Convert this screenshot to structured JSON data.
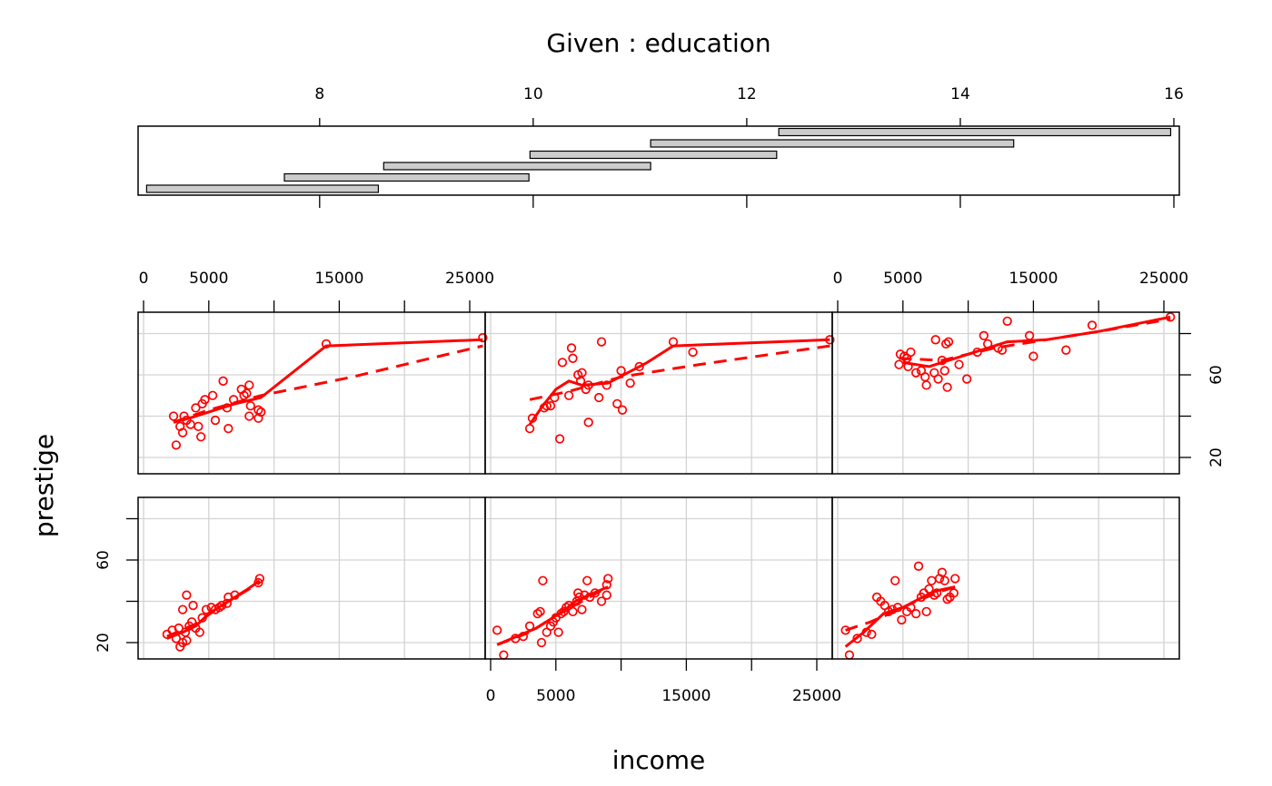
{
  "chart_data": {
    "type": "scatter",
    "title": "Given : education",
    "xlabel": "income",
    "ylabel": "prestige",
    "given": {
      "name": "education",
      "ticks": [
        8,
        10,
        12,
        14,
        16
      ],
      "tick_labels": [
        "8",
        "10",
        "12",
        "14",
        "16"
      ],
      "range": [
        6.3,
        16.0
      ],
      "intervals": [
        [
          6.38,
          8.55
        ],
        [
          7.67,
          9.96
        ],
        [
          8.6,
          11.1
        ],
        [
          9.97,
          12.28
        ],
        [
          11.1,
          14.5
        ],
        [
          12.3,
          15.97
        ]
      ]
    },
    "xlim": [
      -200,
      27000
    ],
    "x_ticks": [
      0,
      5000,
      10000,
      15000,
      20000,
      25000
    ],
    "x_tick_labels": [
      "0",
      "5000",
      "",
      "15000",
      "",
      "25000"
    ],
    "ylim": [
      11,
      91
    ],
    "y_ticks": [
      20,
      40,
      60,
      80
    ],
    "y_tick_labels": [
      "20",
      "",
      "60",
      ""
    ],
    "grid": true,
    "panels": [
      {
        "points": [
          [
            1800,
            24
          ],
          [
            2200,
            26
          ],
          [
            2500,
            22
          ],
          [
            2700,
            27
          ],
          [
            2800,
            18
          ],
          [
            3000,
            20
          ],
          [
            3200,
            25
          ],
          [
            3000,
            36
          ],
          [
            3300,
            21
          ],
          [
            3500,
            28
          ],
          [
            3300,
            43
          ],
          [
            3700,
            30
          ],
          [
            3800,
            38
          ],
          [
            4000,
            27
          ],
          [
            4300,
            25
          ],
          [
            4500,
            32
          ],
          [
            4800,
            36
          ],
          [
            5200,
            37
          ],
          [
            5500,
            36
          ],
          [
            5800,
            37
          ],
          [
            6000,
            38
          ],
          [
            6400,
            39
          ],
          [
            6500,
            42
          ],
          [
            7000,
            43
          ],
          [
            8900,
            51
          ],
          [
            8800,
            49
          ]
        ],
        "fit_solid": [
          [
            1800,
            22
          ],
          [
            3000,
            25
          ],
          [
            4000,
            28
          ],
          [
            5000,
            34
          ],
          [
            6000,
            38
          ],
          [
            7000,
            42
          ],
          [
            8000,
            46
          ],
          [
            8900,
            50
          ]
        ],
        "fit_dashed": [
          [
            1800,
            23
          ],
          [
            4000,
            29
          ],
          [
            6000,
            38
          ],
          [
            8900,
            49
          ]
        ]
      },
      {
        "points": [
          [
            500,
            26
          ],
          [
            1000,
            14
          ],
          [
            1900,
            22
          ],
          [
            2500,
            23
          ],
          [
            3000,
            28
          ],
          [
            3600,
            34
          ],
          [
            3800,
            35
          ],
          [
            3900,
            20
          ],
          [
            4000,
            50
          ],
          [
            4300,
            25
          ],
          [
            4600,
            28
          ],
          [
            4800,
            30
          ],
          [
            5000,
            32
          ],
          [
            5200,
            25
          ],
          [
            5400,
            34
          ],
          [
            5600,
            35
          ],
          [
            5800,
            37
          ],
          [
            6000,
            38
          ],
          [
            6300,
            35
          ],
          [
            6600,
            40
          ],
          [
            6700,
            44
          ],
          [
            6800,
            42
          ],
          [
            7000,
            36
          ],
          [
            7200,
            43
          ],
          [
            7400,
            50
          ],
          [
            7600,
            42
          ],
          [
            8000,
            44
          ],
          [
            8500,
            40
          ],
          [
            8900,
            43
          ],
          [
            8900,
            48
          ],
          [
            9000,
            51
          ]
        ],
        "fit_solid": [
          [
            500,
            19
          ],
          [
            2000,
            23
          ],
          [
            3500,
            27
          ],
          [
            4500,
            31
          ],
          [
            5500,
            35
          ],
          [
            6500,
            40
          ],
          [
            7500,
            43
          ],
          [
            9000,
            47
          ]
        ],
        "fit_dashed": [
          [
            500,
            19
          ],
          [
            3000,
            25
          ],
          [
            5000,
            33
          ],
          [
            7000,
            40
          ],
          [
            9000,
            47
          ]
        ]
      },
      {
        "points": [
          [
            600,
            26
          ],
          [
            900,
            14
          ],
          [
            1500,
            22
          ],
          [
            2200,
            25
          ],
          [
            2600,
            24
          ],
          [
            3000,
            42
          ],
          [
            3300,
            40
          ],
          [
            3600,
            38
          ],
          [
            3900,
            35
          ],
          [
            4200,
            36
          ],
          [
            4400,
            50
          ],
          [
            4600,
            37
          ],
          [
            4900,
            31
          ],
          [
            5300,
            35
          ],
          [
            5600,
            37
          ],
          [
            6000,
            34
          ],
          [
            6200,
            57
          ],
          [
            6400,
            42
          ],
          [
            6600,
            44
          ],
          [
            6800,
            35
          ],
          [
            7000,
            46
          ],
          [
            7200,
            50
          ],
          [
            7400,
            43
          ],
          [
            7600,
            44
          ],
          [
            7800,
            51
          ],
          [
            8000,
            54
          ],
          [
            8200,
            50
          ],
          [
            8400,
            41
          ],
          [
            8600,
            42
          ],
          [
            8900,
            44
          ],
          [
            9000,
            51
          ]
        ],
        "fit_solid": [
          [
            600,
            18
          ],
          [
            2000,
            25
          ],
          [
            3500,
            34
          ],
          [
            5000,
            37
          ],
          [
            6500,
            42
          ],
          [
            7500,
            45
          ],
          [
            9000,
            47
          ]
        ],
        "fit_dashed": [
          [
            600,
            26
          ],
          [
            2500,
            30
          ],
          [
            4000,
            34
          ],
          [
            6000,
            40
          ],
          [
            8000,
            45
          ],
          [
            9000,
            47
          ]
        ]
      },
      {
        "points": [
          [
            2300,
            40
          ],
          [
            2500,
            26
          ],
          [
            2800,
            35
          ],
          [
            3000,
            32
          ],
          [
            3100,
            40
          ],
          [
            3300,
            38
          ],
          [
            3600,
            36
          ],
          [
            4000,
            44
          ],
          [
            4200,
            35
          ],
          [
            4400,
            30
          ],
          [
            4500,
            46
          ],
          [
            4700,
            48
          ],
          [
            5300,
            50
          ],
          [
            5500,
            38
          ],
          [
            6100,
            57
          ],
          [
            6400,
            44
          ],
          [
            6500,
            34
          ],
          [
            6900,
            48
          ],
          [
            7500,
            53
          ],
          [
            7700,
            50
          ],
          [
            7900,
            51
          ],
          [
            8100,
            55
          ],
          [
            8100,
            40
          ],
          [
            8200,
            45
          ],
          [
            8800,
            43
          ],
          [
            8800,
            39
          ],
          [
            9000,
            42
          ],
          [
            14000,
            75
          ],
          [
            26000,
            78
          ]
        ],
        "fit_solid": [
          [
            2300,
            37
          ],
          [
            3500,
            39
          ],
          [
            5000,
            42
          ],
          [
            7000,
            46
          ],
          [
            9000,
            49
          ],
          [
            14000,
            74
          ],
          [
            26000,
            77
          ]
        ],
        "fit_dashed": [
          [
            2300,
            37
          ],
          [
            5000,
            43
          ],
          [
            9000,
            50
          ],
          [
            16000,
            59
          ],
          [
            26000,
            74
          ]
        ]
      },
      {
        "points": [
          [
            3000,
            34
          ],
          [
            3200,
            39
          ],
          [
            4100,
            44
          ],
          [
            4300,
            45
          ],
          [
            4600,
            45
          ],
          [
            4900,
            49
          ],
          [
            5300,
            29
          ],
          [
            5500,
            66
          ],
          [
            6000,
            50
          ],
          [
            6200,
            73
          ],
          [
            6300,
            68
          ],
          [
            6700,
            60
          ],
          [
            6900,
            57
          ],
          [
            7000,
            61
          ],
          [
            7300,
            53
          ],
          [
            7500,
            55
          ],
          [
            7500,
            37
          ],
          [
            8300,
            49
          ],
          [
            8500,
            76
          ],
          [
            8900,
            55
          ],
          [
            9700,
            46
          ],
          [
            10000,
            62
          ],
          [
            10100,
            43
          ],
          [
            10700,
            56
          ],
          [
            11400,
            64
          ],
          [
            14000,
            76
          ],
          [
            15500,
            71
          ],
          [
            26000,
            77
          ]
        ],
        "fit_solid": [
          [
            3000,
            36
          ],
          [
            4000,
            45
          ],
          [
            5000,
            53
          ],
          [
            6000,
            57
          ],
          [
            7000,
            55
          ],
          [
            9000,
            56
          ],
          [
            12000,
            66
          ],
          [
            14000,
            74
          ],
          [
            26000,
            77
          ]
        ],
        "fit_dashed": [
          [
            3000,
            48
          ],
          [
            6000,
            52
          ],
          [
            10000,
            59
          ],
          [
            16000,
            65
          ],
          [
            26000,
            74
          ]
        ]
      },
      {
        "points": [
          [
            4700,
            65
          ],
          [
            4800,
            70
          ],
          [
            5100,
            69
          ],
          [
            5300,
            68
          ],
          [
            5400,
            64
          ],
          [
            5600,
            71
          ],
          [
            6000,
            61
          ],
          [
            6400,
            62
          ],
          [
            6700,
            59
          ],
          [
            6800,
            55
          ],
          [
            7400,
            61
          ],
          [
            7500,
            77
          ],
          [
            7700,
            58
          ],
          [
            8000,
            67
          ],
          [
            8200,
            62
          ],
          [
            8300,
            75
          ],
          [
            8400,
            54
          ],
          [
            8500,
            76
          ],
          [
            9300,
            65
          ],
          [
            9900,
            58
          ],
          [
            10700,
            71
          ],
          [
            11200,
            79
          ],
          [
            11500,
            75
          ],
          [
            12300,
            73
          ],
          [
            12600,
            72
          ],
          [
            13000,
            86
          ],
          [
            14700,
            79
          ],
          [
            15000,
            69
          ],
          [
            17500,
            72
          ],
          [
            19500,
            84
          ],
          [
            25500,
            88
          ]
        ],
        "fit_solid": [
          [
            5000,
            66
          ],
          [
            7000,
            64
          ],
          [
            9000,
            68
          ],
          [
            11000,
            72
          ],
          [
            13000,
            76
          ],
          [
            16000,
            77
          ],
          [
            20000,
            81
          ],
          [
            25500,
            88
          ]
        ],
        "fit_dashed": [
          [
            4700,
            68
          ],
          [
            8000,
            67
          ],
          [
            12000,
            73
          ],
          [
            16000,
            77
          ],
          [
            20000,
            81
          ],
          [
            25500,
            87
          ]
        ]
      }
    ]
  }
}
